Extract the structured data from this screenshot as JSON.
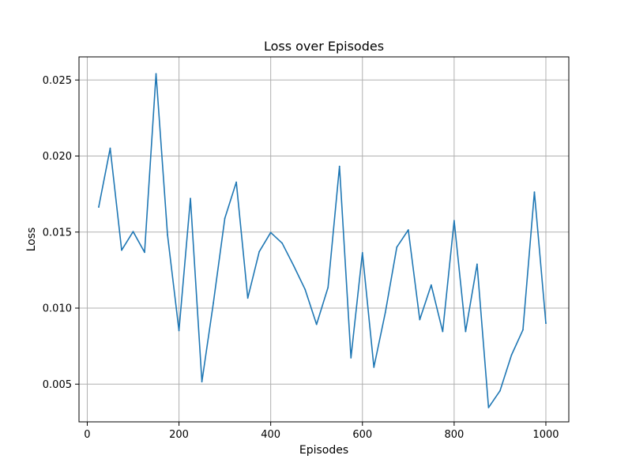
{
  "chart_data": {
    "type": "line",
    "title": "Loss over Episodes",
    "xlabel": "Episodes",
    "ylabel": "Loss",
    "xlim": [
      -18,
      1050
    ],
    "ylim": [
      0.00252,
      0.02652
    ],
    "xticks": [
      0,
      200,
      400,
      600,
      800,
      1000
    ],
    "xtick_labels": [
      "0",
      "200",
      "400",
      "600",
      "800",
      "1000"
    ],
    "yticks": [
      0.005,
      0.01,
      0.015,
      0.02,
      0.025
    ],
    "ytick_labels": [
      "0.005",
      "0.010",
      "0.015",
      "0.020",
      "0.025"
    ],
    "grid": true,
    "legend": null,
    "series": [
      {
        "color": "#1f77b4",
        "x": [
          25,
          50,
          75,
          100,
          125,
          150,
          175,
          200,
          225,
          250,
          275,
          300,
          325,
          350,
          375,
          400,
          425,
          450,
          475,
          500,
          525,
          550,
          575,
          600,
          625,
          650,
          675,
          700,
          725,
          750,
          775,
          800,
          825,
          850,
          875,
          900,
          925,
          950,
          975,
          1000
        ],
        "y": [
          0.01665,
          0.02051,
          0.01381,
          0.01503,
          0.01367,
          0.02541,
          0.01482,
          0.00852,
          0.01721,
          0.00516,
          0.01034,
          0.01591,
          0.01828,
          0.01066,
          0.01371,
          0.01497,
          0.01427,
          0.01279,
          0.01123,
          0.00893,
          0.01136,
          0.01932,
          0.00673,
          0.01364,
          0.00611,
          0.00972,
          0.01401,
          0.01514,
          0.00924,
          0.01152,
          0.00846,
          0.01575,
          0.00846,
          0.01289,
          0.00346,
          0.00456,
          0.00691,
          0.00857,
          0.01763,
          0.00901
        ]
      }
    ]
  }
}
